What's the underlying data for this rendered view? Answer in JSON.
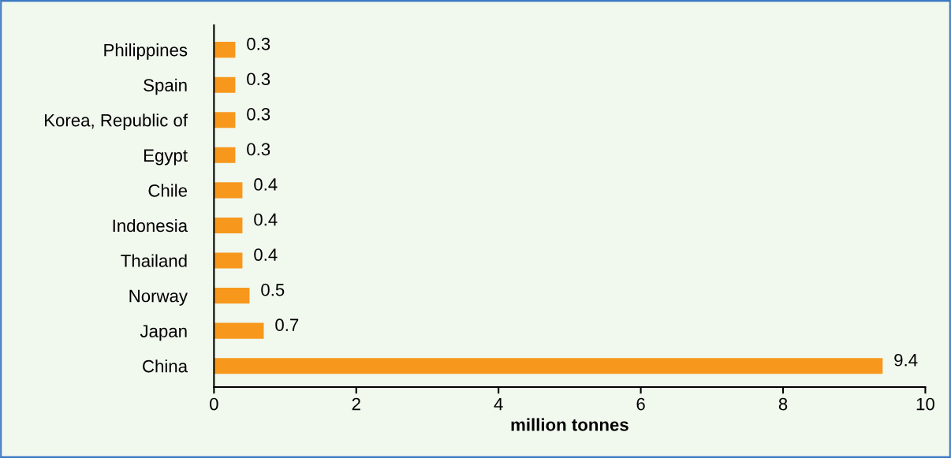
{
  "chart_data": {
    "type": "bar",
    "orientation": "horizontal",
    "categories": [
      "Philippines",
      "Spain",
      "Korea, Republic of",
      "Egypt",
      "Chile",
      "Indonesia",
      "Thailand",
      "Norway",
      "Japan",
      "China"
    ],
    "values": [
      0.3,
      0.3,
      0.3,
      0.3,
      0.4,
      0.4,
      0.4,
      0.5,
      0.7,
      9.4
    ],
    "color": "#f7981d",
    "xlabel": "million tonnes",
    "xlim": [
      0,
      10
    ],
    "xticks": [
      0,
      2,
      4,
      6,
      8,
      10
    ],
    "data_labels": true,
    "grid": false,
    "legend": false
  }
}
